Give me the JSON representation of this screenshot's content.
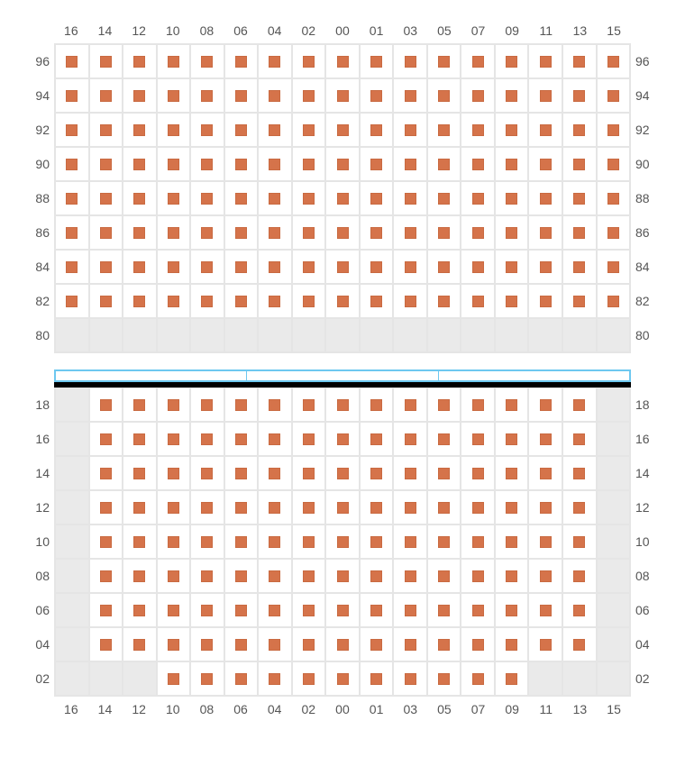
{
  "columns": [
    "16",
    "14",
    "12",
    "10",
    "08",
    "06",
    "04",
    "02",
    "00",
    "01",
    "03",
    "05",
    "07",
    "09",
    "11",
    "13",
    "15"
  ],
  "marker_color": "#d5734a",
  "marker_border": "#c96a41",
  "empty_bg": "#eaeaea",
  "grid_border": "#e5e5e5",
  "label_color": "#555555",
  "label_fontsize": 14,
  "front_bar_border": "#6ec8f0",
  "top_section": {
    "rows": [
      {
        "label": "96",
        "cells": [
          1,
          1,
          1,
          1,
          1,
          1,
          1,
          1,
          1,
          1,
          1,
          1,
          1,
          1,
          1,
          1,
          1
        ]
      },
      {
        "label": "94",
        "cells": [
          1,
          1,
          1,
          1,
          1,
          1,
          1,
          1,
          1,
          1,
          1,
          1,
          1,
          1,
          1,
          1,
          1
        ]
      },
      {
        "label": "92",
        "cells": [
          1,
          1,
          1,
          1,
          1,
          1,
          1,
          1,
          1,
          1,
          1,
          1,
          1,
          1,
          1,
          1,
          1
        ]
      },
      {
        "label": "90",
        "cells": [
          1,
          1,
          1,
          1,
          1,
          1,
          1,
          1,
          1,
          1,
          1,
          1,
          1,
          1,
          1,
          1,
          1
        ]
      },
      {
        "label": "88",
        "cells": [
          1,
          1,
          1,
          1,
          1,
          1,
          1,
          1,
          1,
          1,
          1,
          1,
          1,
          1,
          1,
          1,
          1
        ]
      },
      {
        "label": "86",
        "cells": [
          1,
          1,
          1,
          1,
          1,
          1,
          1,
          1,
          1,
          1,
          1,
          1,
          1,
          1,
          1,
          1,
          1
        ]
      },
      {
        "label": "84",
        "cells": [
          1,
          1,
          1,
          1,
          1,
          1,
          1,
          1,
          1,
          1,
          1,
          1,
          1,
          1,
          1,
          1,
          1
        ]
      },
      {
        "label": "82",
        "cells": [
          1,
          1,
          1,
          1,
          1,
          1,
          1,
          1,
          1,
          1,
          1,
          1,
          1,
          1,
          1,
          1,
          1
        ]
      },
      {
        "label": "80",
        "cells": [
          0,
          0,
          0,
          0,
          0,
          0,
          0,
          0,
          0,
          0,
          0,
          0,
          0,
          0,
          0,
          0,
          0
        ]
      }
    ]
  },
  "bottom_section": {
    "rows": [
      {
        "label": "18",
        "cells": [
          0,
          1,
          1,
          1,
          1,
          1,
          1,
          1,
          1,
          1,
          1,
          1,
          1,
          1,
          1,
          1,
          0
        ]
      },
      {
        "label": "16",
        "cells": [
          0,
          1,
          1,
          1,
          1,
          1,
          1,
          1,
          1,
          1,
          1,
          1,
          1,
          1,
          1,
          1,
          0
        ]
      },
      {
        "label": "14",
        "cells": [
          0,
          1,
          1,
          1,
          1,
          1,
          1,
          1,
          1,
          1,
          1,
          1,
          1,
          1,
          1,
          1,
          0
        ]
      },
      {
        "label": "12",
        "cells": [
          0,
          1,
          1,
          1,
          1,
          1,
          1,
          1,
          1,
          1,
          1,
          1,
          1,
          1,
          1,
          1,
          0
        ]
      },
      {
        "label": "10",
        "cells": [
          0,
          1,
          1,
          1,
          1,
          1,
          1,
          1,
          1,
          1,
          1,
          1,
          1,
          1,
          1,
          1,
          0
        ]
      },
      {
        "label": "08",
        "cells": [
          0,
          1,
          1,
          1,
          1,
          1,
          1,
          1,
          1,
          1,
          1,
          1,
          1,
          1,
          1,
          1,
          0
        ]
      },
      {
        "label": "06",
        "cells": [
          0,
          1,
          1,
          1,
          1,
          1,
          1,
          1,
          1,
          1,
          1,
          1,
          1,
          1,
          1,
          1,
          0
        ]
      },
      {
        "label": "04",
        "cells": [
          0,
          1,
          1,
          1,
          1,
          1,
          1,
          1,
          1,
          1,
          1,
          1,
          1,
          1,
          1,
          1,
          0
        ]
      },
      {
        "label": "02",
        "cells": [
          0,
          0,
          0,
          1,
          1,
          1,
          1,
          1,
          1,
          1,
          1,
          1,
          1,
          1,
          0,
          0,
          0
        ]
      }
    ]
  }
}
